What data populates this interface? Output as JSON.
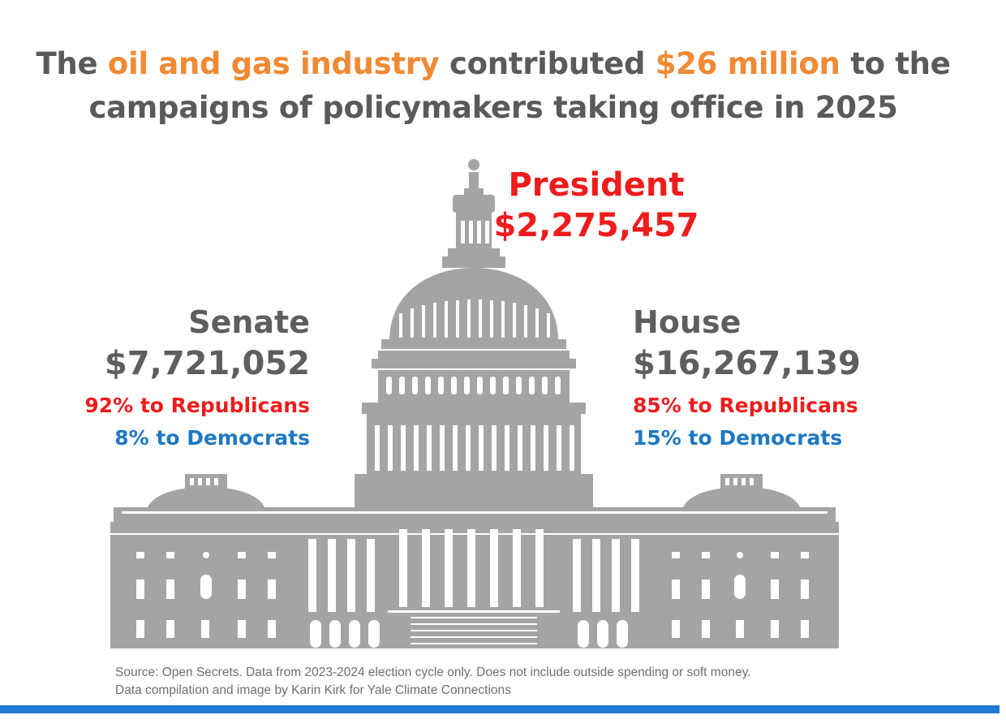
{
  "headline": {
    "part1": "The ",
    "highlight1": "oil and gas industry",
    "part2": " contributed ",
    "highlight2": "$26 million",
    "part3": " to the campaigns of policymakers taking office in 2025"
  },
  "president": {
    "label": "President",
    "amount": "$2,275,457"
  },
  "senate": {
    "label": "Senate",
    "amount": "$7,721,052",
    "republicans": "92% to Republicans",
    "democrats": "8% to Democrats"
  },
  "house": {
    "label": "House",
    "amount": "$16,267,139",
    "republicans": "85% to Republicans",
    "democrats": "15% to Democrats"
  },
  "source": {
    "line1": "Source: Open Secrets. Data from 2023-2024 election cycle only. Does not include outside spending or soft money.",
    "line2": "Data compilation and image by Karin Kirk for Yale Climate Connections"
  },
  "colors": {
    "highlight": "#f08a34",
    "republican": "#ee1c1c",
    "democrat": "#1f78c1",
    "building": "#a4a4a4",
    "accent_bar": "#1e7ad6"
  },
  "icons": [
    "capitol-building-illustration"
  ]
}
